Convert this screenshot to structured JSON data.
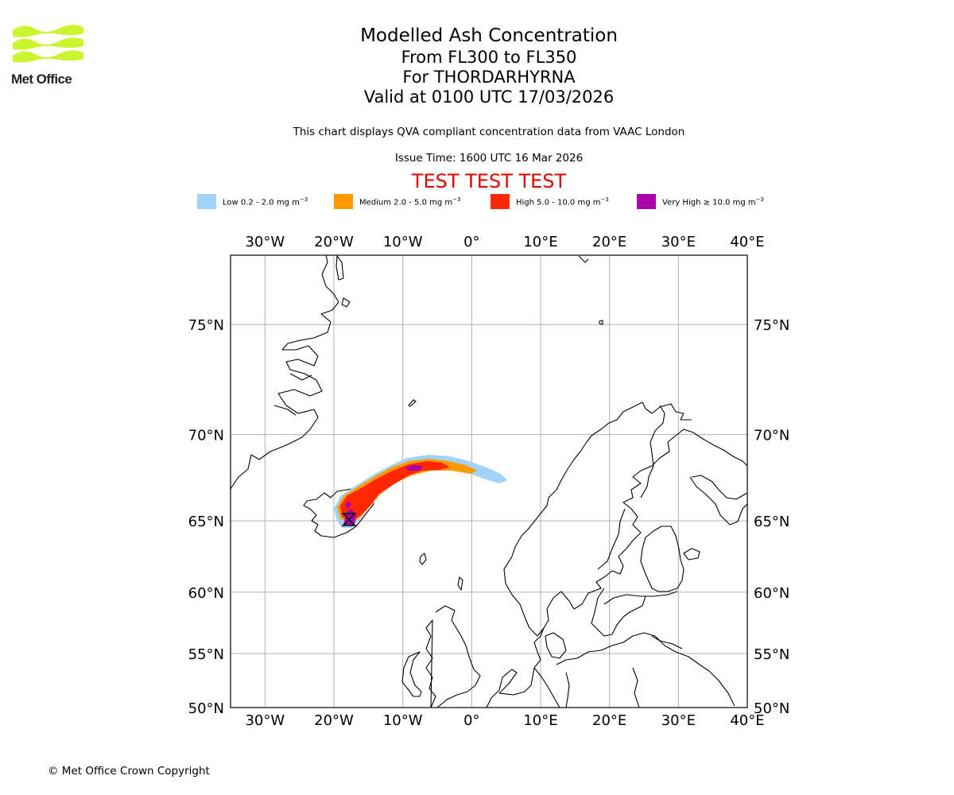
{
  "logo": {
    "text": "Met Office",
    "color": "#c8f52e"
  },
  "title": {
    "main": "Modelled Ash Concentration",
    "levels": "From FL300 to FL350",
    "volcano": "For THORDARHYRNA",
    "valid": "Valid at 0100 UTC 17/03/2026"
  },
  "subtitle": "This chart displays QVA compliant concentration data from VAAC London",
  "issue_time": "Issue Time: 1600 UTC 16 Mar 2026",
  "test_banner": "TEST TEST TEST",
  "legend": [
    {
      "label": "Low 0.2 - 2.0 mg m",
      "color": "#a0d2fa"
    },
    {
      "label": "Medium 2.0 - 5.0 mg m",
      "color": "#ff9a00"
    },
    {
      "label": "High 5.0 - 10.0 mg m",
      "color": "#ff2800"
    },
    {
      "label": "Very High ≥ 10.0 mg m",
      "color": "#aa00aa"
    }
  ],
  "legend_unit_exp": "−3",
  "map": {
    "lon_labels": [
      "30°W",
      "20°W",
      "10°W",
      "0°",
      "10°E",
      "20°E",
      "30°E",
      "40°E"
    ],
    "lon_values": [
      -30,
      -20,
      -10,
      0,
      10,
      20,
      30,
      40
    ],
    "lat_labels": [
      "75°N",
      "70°N",
      "65°N",
      "60°N",
      "55°N",
      "50°N"
    ],
    "lat_values": [
      75,
      70,
      65,
      60,
      55,
      50
    ],
    "lon_range": [
      -35,
      40
    ],
    "lat_range": [
      50,
      77.5
    ],
    "projection": "mercator",
    "volcano": {
      "name": "THORDARHYRNA",
      "lon": -17.6,
      "lat": 64.3
    }
  },
  "copyright": "© Met Office Crown Copyright"
}
